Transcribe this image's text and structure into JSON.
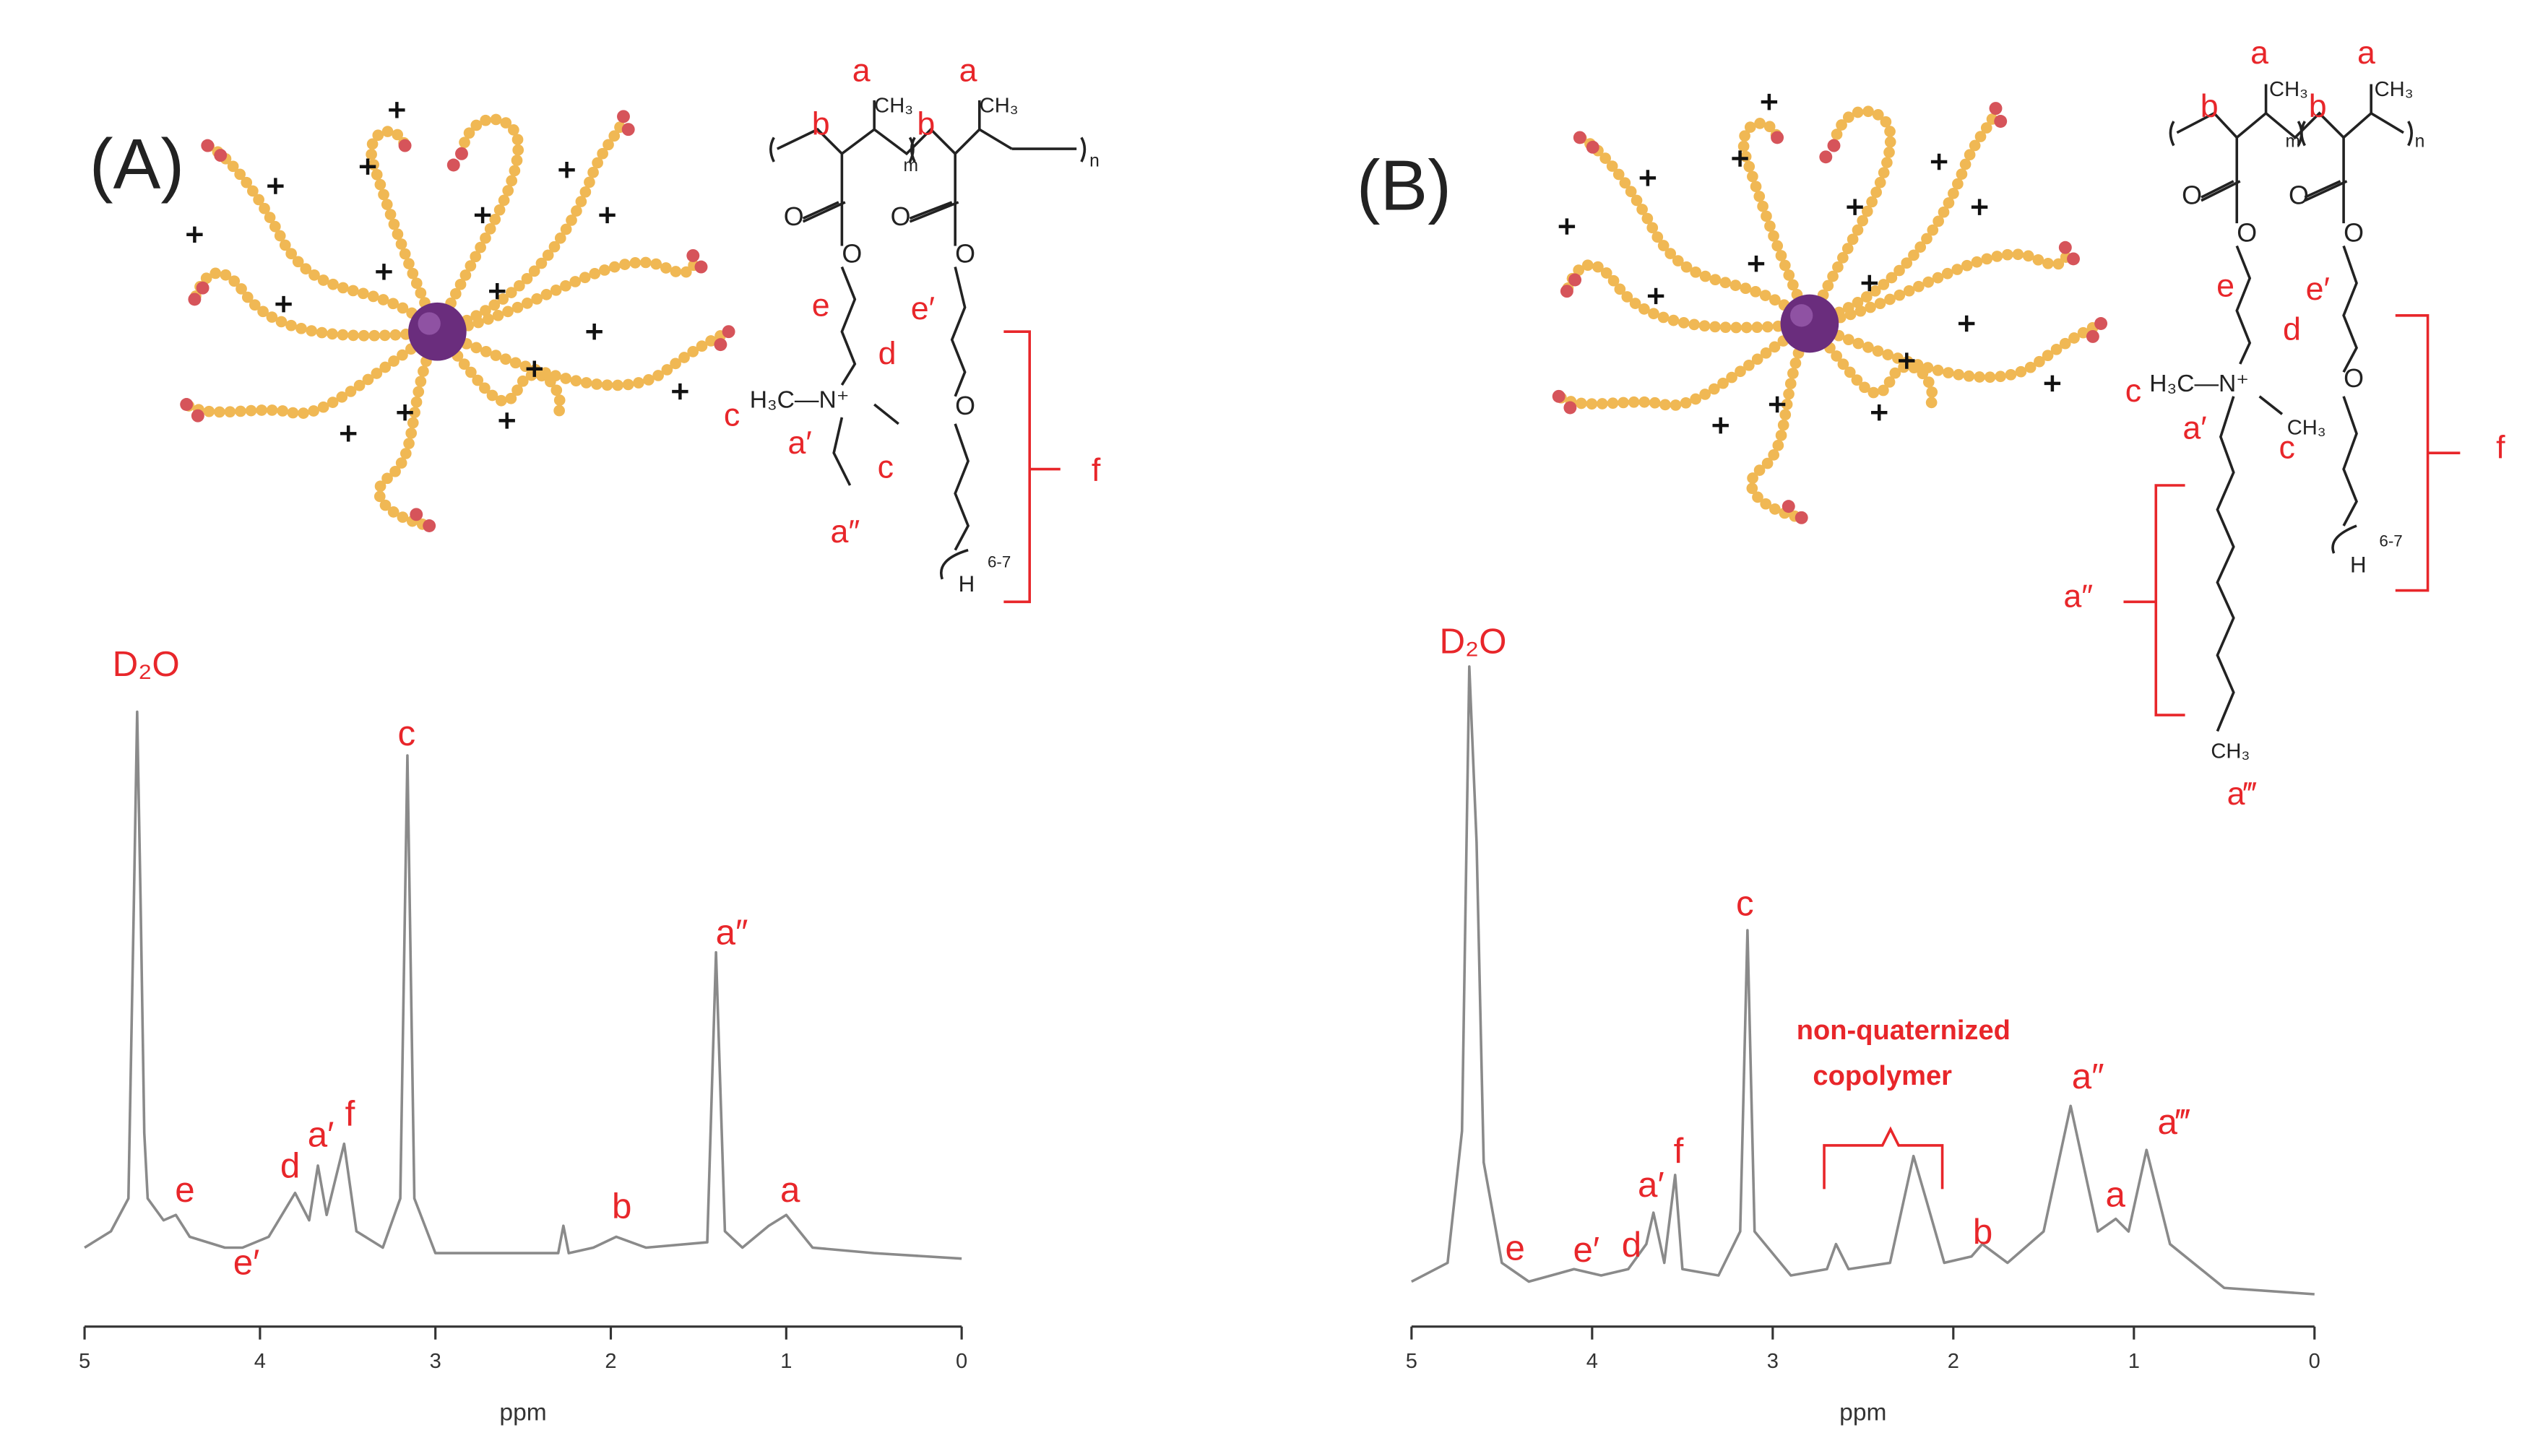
{
  "chart_data": [
    {
      "type": "line",
      "xlabel": "ppm",
      "xlim": [
        5,
        0
      ],
      "xticks": [
        5,
        4,
        3,
        2,
        1,
        0
      ],
      "ylim": [
        0,
        100
      ],
      "color": "#8a8a8a",
      "x": [
        5.0,
        4.85,
        4.75,
        4.72,
        4.7,
        4.68,
        4.66,
        4.64,
        4.55,
        4.48,
        4.4,
        4.2,
        4.1,
        3.95,
        3.8,
        3.72,
        3.67,
        3.62,
        3.52,
        3.45,
        3.3,
        3.2,
        3.16,
        3.12,
        3.0,
        2.7,
        2.3,
        2.27,
        2.24,
        2.1,
        1.97,
        1.8,
        1.45,
        1.4,
        1.35,
        1.25,
        1.1,
        1.0,
        0.85,
        0.5,
        0.0
      ],
      "values": [
        2,
        5,
        11,
        64,
        100,
        64,
        23,
        11,
        7,
        8,
        4,
        2,
        2,
        4,
        12,
        7,
        17,
        8,
        21,
        5,
        2,
        11,
        92,
        11,
        1,
        1,
        1,
        6,
        1,
        2,
        4,
        2,
        3,
        56,
        5,
        2,
        6,
        8,
        2,
        1,
        0
      ],
      "annotations": [
        "D₂O",
        "c",
        "a″",
        "e",
        "e′",
        "d",
        "a′",
        "f",
        "b",
        "a"
      ]
    },
    {
      "type": "line",
      "xlabel": "ppm",
      "xlim": [
        5,
        0
      ],
      "xticks": [
        5,
        4,
        3,
        2,
        1,
        0
      ],
      "ylim": [
        0,
        100
      ],
      "color": "#8a8a8a",
      "x": [
        5.0,
        4.8,
        4.72,
        4.68,
        4.64,
        4.6,
        4.5,
        4.45,
        4.35,
        4.1,
        3.95,
        3.8,
        3.7,
        3.66,
        3.6,
        3.54,
        3.5,
        3.3,
        3.18,
        3.14,
        3.1,
        2.9,
        2.7,
        2.65,
        2.58,
        2.35,
        2.22,
        2.15,
        2.05,
        1.9,
        1.84,
        1.7,
        1.5,
        1.35,
        1.2,
        1.1,
        1.03,
        0.93,
        0.8,
        0.5,
        0.0
      ],
      "values": [
        2,
        5,
        26,
        100,
        72,
        21,
        5,
        4,
        2,
        4,
        3,
        4,
        8,
        13,
        5,
        19,
        4,
        3,
        10,
        58,
        10,
        3,
        4,
        8,
        4,
        5,
        22,
        15,
        5,
        6,
        8,
        5,
        10,
        30,
        10,
        12,
        10,
        23,
        8,
        1,
        0
      ],
      "annotations": [
        "D₂O",
        "c",
        "non-quaternized",
        "copolymer",
        "a″",
        "a‴",
        "a",
        "b",
        "e",
        "e′",
        "d",
        "a′",
        "f"
      ]
    }
  ],
  "panels": [
    {
      "label": "(A)",
      "structure_labels": [
        "a",
        "a",
        "b",
        "b",
        "CH₃",
        "CH₃",
        "m",
        "n",
        "O",
        "O",
        "O",
        "O",
        "e",
        "e′",
        "d",
        "H₃C—N⁺",
        "c",
        "a′",
        "c",
        "a″",
        "O",
        "H",
        "6-7",
        "f"
      ]
    },
    {
      "label": "(B)",
      "structure_labels": [
        "a",
        "a",
        "b",
        "b",
        "CH₃",
        "CH₃",
        "m",
        "n",
        "O",
        "O",
        "O",
        "O",
        "e",
        "e′",
        "d",
        "H₃C—N⁺",
        "CH₃",
        "c",
        "c",
        "a′",
        "a″",
        "CH₃",
        "a‴",
        "O",
        "H",
        "6-7",
        "f"
      ]
    }
  ]
}
